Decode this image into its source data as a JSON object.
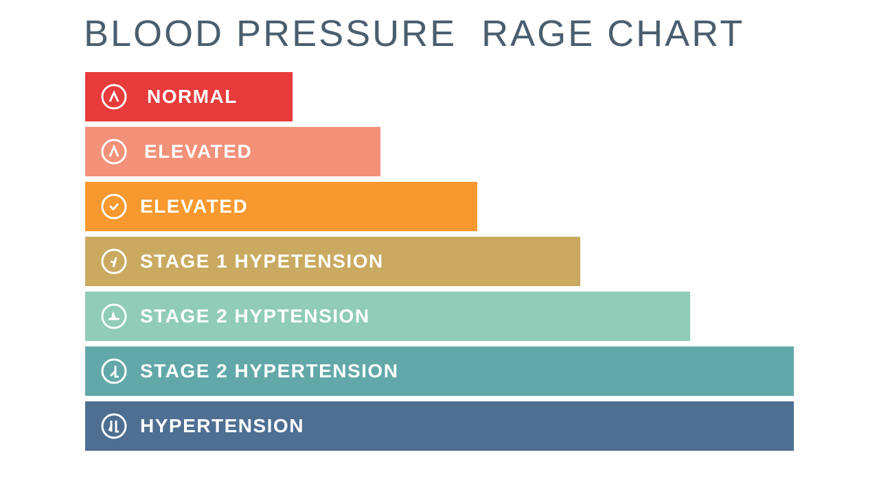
{
  "title": "BLOOD PRESSURE  RAGE CHART",
  "rows": [
    {
      "label": "NORMAL"
    },
    {
      "label": "ELEVATED"
    },
    {
      "label": "ELEVATED"
    },
    {
      "label": "STAGE 1 HYPETENSION"
    },
    {
      "label": "STAGE 2 HYPTENSION"
    },
    {
      "label": "STAGE 2 HYPERTENSION"
    },
    {
      "label": "HYPERTENSION"
    }
  ]
}
